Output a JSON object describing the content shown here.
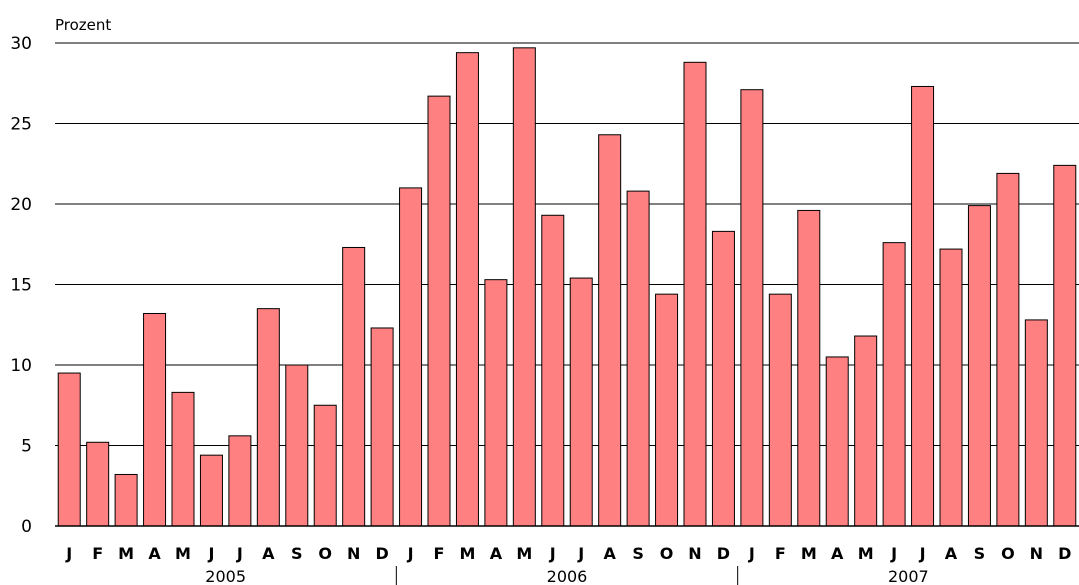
{
  "chart_data": {
    "type": "bar",
    "title": "",
    "ylabel": "Prozent",
    "xlabel": "",
    "ylim": [
      0,
      30
    ],
    "yticks": [
      0,
      5,
      10,
      15,
      20,
      25,
      30
    ],
    "grid": true,
    "bar_color": "#ff8080",
    "years": [
      {
        "label": "2005",
        "months": 12
      },
      {
        "label": "2006",
        "months": 12
      },
      {
        "label": "2007",
        "months": 12
      }
    ],
    "categories": [
      "J",
      "F",
      "M",
      "A",
      "M",
      "J",
      "J",
      "A",
      "S",
      "O",
      "N",
      "D",
      "J",
      "F",
      "M",
      "A",
      "M",
      "J",
      "J",
      "A",
      "S",
      "O",
      "N",
      "D",
      "J",
      "F",
      "M",
      "A",
      "M",
      "J",
      "J",
      "A",
      "S",
      "O",
      "N",
      "D"
    ],
    "values": [
      9.5,
      5.2,
      3.2,
      13.2,
      8.3,
      4.4,
      5.6,
      13.5,
      10.0,
      7.5,
      17.3,
      12.3,
      21.0,
      26.7,
      29.4,
      15.3,
      29.7,
      19.3,
      15.4,
      24.3,
      20.8,
      14.4,
      28.8,
      18.3,
      27.1,
      14.4,
      19.6,
      10.5,
      11.8,
      17.6,
      27.3,
      17.2,
      19.9,
      21.9,
      12.8,
      22.4
    ]
  }
}
